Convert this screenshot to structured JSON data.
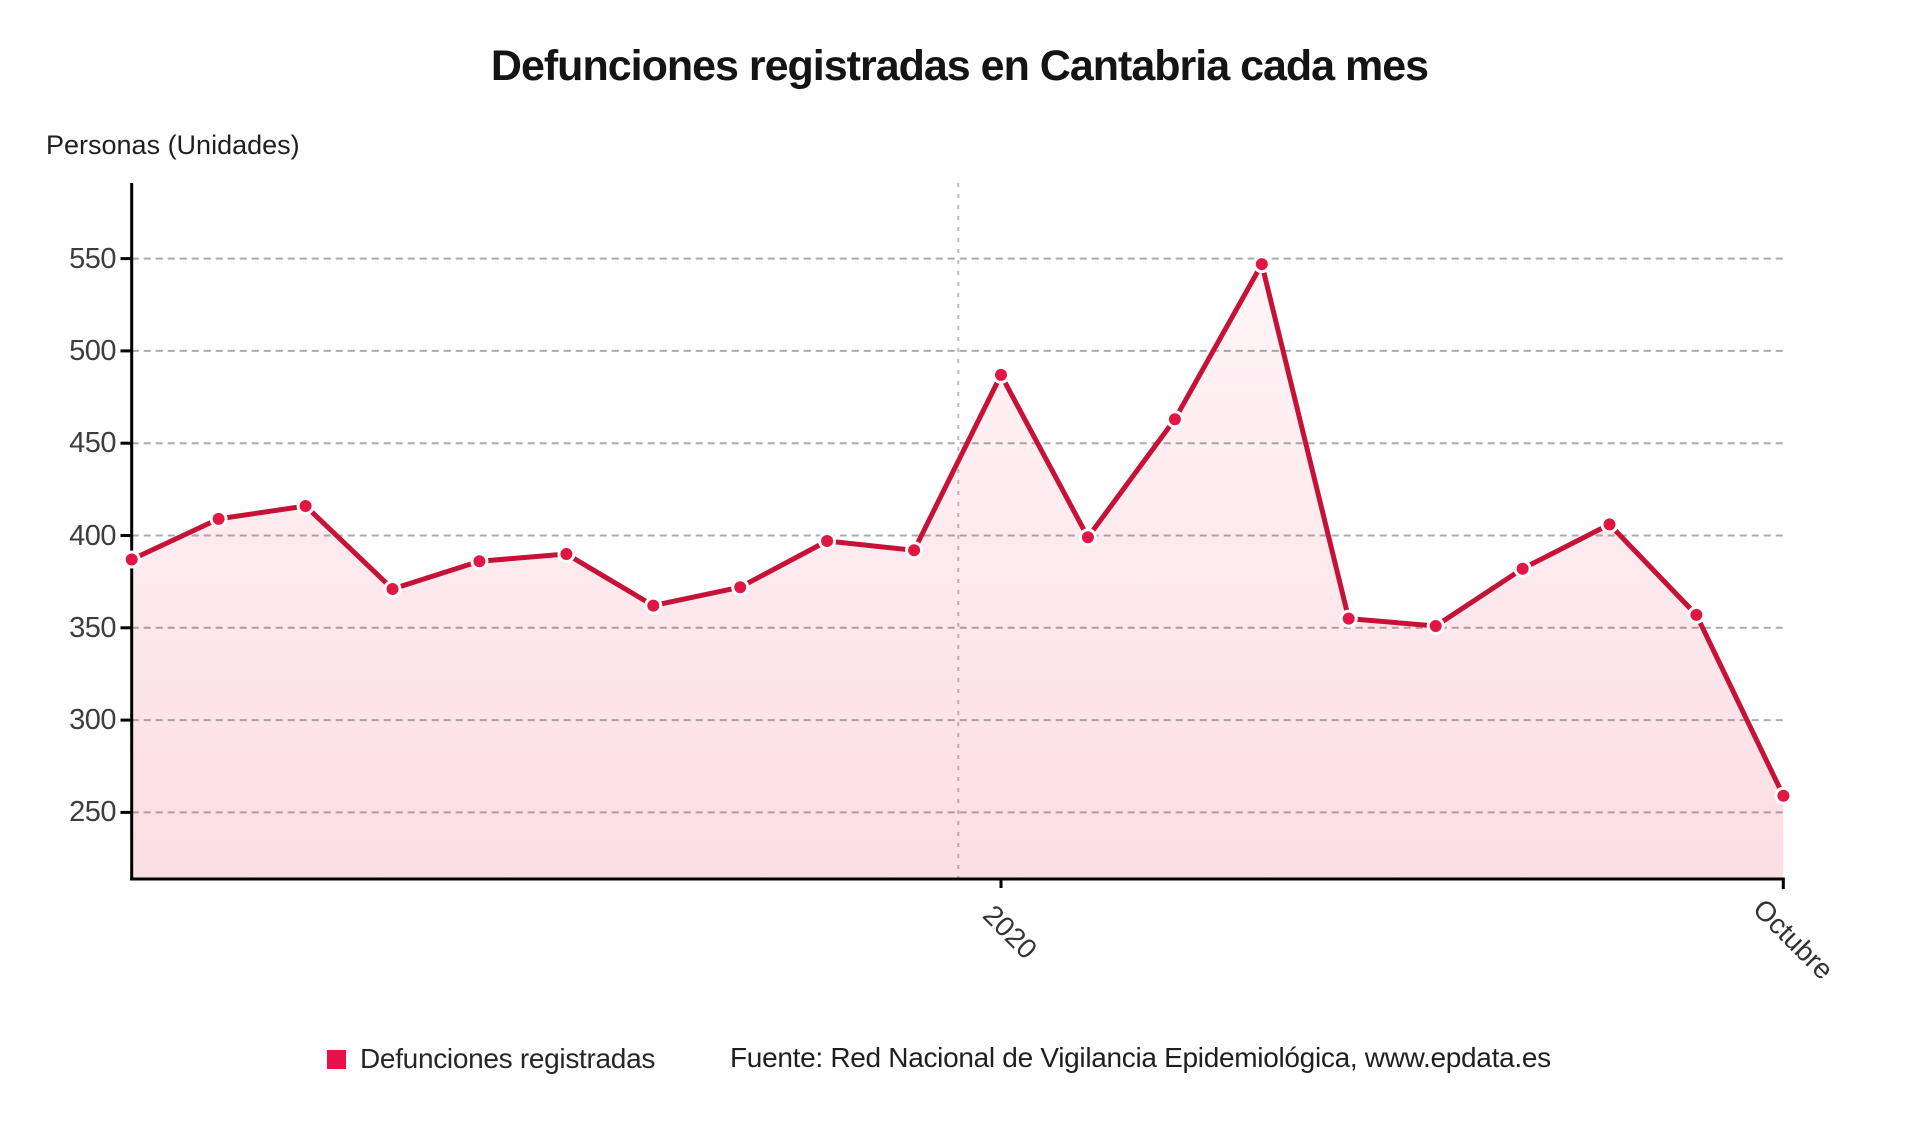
{
  "title": "Defunciones registradas en Cantabria cada mes",
  "y_axis": {
    "label": "Personas (Unidades)",
    "ticks": [
      "550",
      "500",
      "450",
      "400",
      "350",
      "300",
      "250"
    ]
  },
  "x_axis": {
    "labels": [
      "2020",
      "Octubre"
    ]
  },
  "legend": {
    "items": [
      {
        "label": "Defunciones registradas",
        "color": "#e8114a"
      }
    ]
  },
  "source": "Fuente: Red Nacional de Vigilancia Epidemiológica, www.epdata.es",
  "chart_data": {
    "type": "line",
    "title": "Defunciones registradas en Cantabria cada mes",
    "ylabel": "Personas (Unidades)",
    "series": [
      {
        "name": "Defunciones registradas",
        "values": [
          387,
          409,
          416,
          371,
          386,
          390,
          362,
          372,
          397,
          392,
          487,
          399,
          463,
          547,
          355,
          351,
          382,
          406,
          357,
          259
        ]
      }
    ],
    "x_point_count": 20,
    "x_tick_labels": [
      {
        "label": "2020",
        "boundary_between_points": [
          10,
          11
        ]
      },
      {
        "label": "Octubre",
        "at_point": 20
      }
    ],
    "yticks": [
      550,
      500,
      450,
      400,
      350,
      300,
      250
    ],
    "ylim": [
      215,
      590
    ],
    "grid": "horizontal-dashed",
    "year_separator_line": "vertical-dashed",
    "legend_position": "bottom-left",
    "marker": "circle",
    "area_fill": true,
    "colors": {
      "line": "#c51236",
      "marker": "#e01744",
      "marker_ring": "#ffffff",
      "area_top": "rgba(230,20,70,0.03)",
      "area_bottom": "rgba(230,20,70,0.14)",
      "grid": "#ababab",
      "year_line": "#bdbdbd",
      "axis": "#000000",
      "legend_swatch": "#e8114a"
    }
  }
}
